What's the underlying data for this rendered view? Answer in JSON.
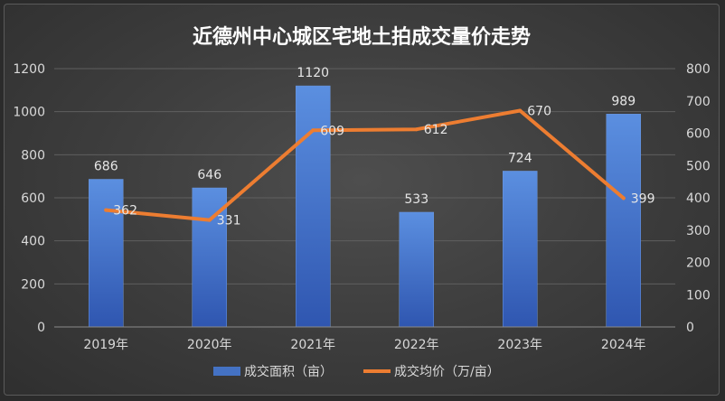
{
  "chart_data": {
    "type": "bar",
    "title": "近德州中心城区宅地土拍成交量价走势",
    "categories": [
      "2019年",
      "2020年",
      "2021年",
      "2022年",
      "2023年",
      "2024年"
    ],
    "series": [
      {
        "name": "成交面积（亩）",
        "type": "bar",
        "axis": "left",
        "color": "#4472c4",
        "values": [
          686,
          646,
          1120,
          533,
          724,
          989
        ]
      },
      {
        "name": "成交均价（万/亩）",
        "type": "line",
        "axis": "right",
        "color": "#ed7d31",
        "values": [
          362,
          331,
          609,
          612,
          670,
          399
        ]
      }
    ],
    "y_left": {
      "min": 0,
      "max": 1200,
      "ticks": [
        "0",
        "200",
        "400",
        "600",
        "800",
        "1000",
        "1200"
      ]
    },
    "y_right": {
      "min": 0,
      "max": 800,
      "ticks": [
        "0",
        "100",
        "200",
        "300",
        "400",
        "500",
        "600",
        "700",
        "800"
      ]
    },
    "grid": true,
    "legend_position": "bottom"
  }
}
